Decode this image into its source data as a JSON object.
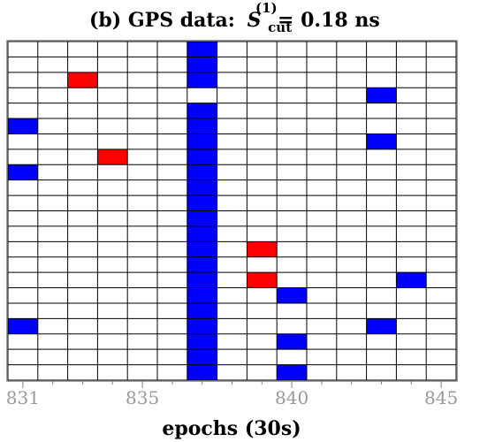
{
  "title": {
    "prefix": "(b) GPS data:",
    "symbol": "S",
    "superscript": "(1)",
    "subscript": "cut",
    "suffix": "= 0.18 ns"
  },
  "chart_data": {
    "type": "heatmap",
    "xlabel": "epochs (30s)",
    "xlim": [
      830.5,
      845.5
    ],
    "x_ticks": [
      831,
      835,
      840,
      845
    ],
    "n_columns": 15,
    "n_rows": 22,
    "colors": {
      "red": "#ff0000",
      "blue": "#0000ff",
      "grid": "#000000",
      "frame": "#808080",
      "empty": "#ffffff"
    },
    "cells": [
      {
        "epoch": 831,
        "row": 6,
        "color": "blue"
      },
      {
        "epoch": 831,
        "row": 9,
        "color": "blue"
      },
      {
        "epoch": 831,
        "row": 19,
        "color": "blue"
      },
      {
        "epoch": 833,
        "row": 3,
        "color": "red"
      },
      {
        "epoch": 834,
        "row": 8,
        "color": "red"
      },
      {
        "epoch": 837,
        "rows_from": 1,
        "rows_to": 3,
        "color": "blue"
      },
      {
        "epoch": 837,
        "rows_from": 5,
        "rows_to": 22,
        "color": "blue"
      },
      {
        "epoch": 839,
        "row": 14,
        "color": "red"
      },
      {
        "epoch": 839,
        "row": 16,
        "color": "red"
      },
      {
        "epoch": 840,
        "row": 17,
        "color": "blue"
      },
      {
        "epoch": 840,
        "row": 20,
        "color": "blue"
      },
      {
        "epoch": 840,
        "row": 22,
        "color": "blue"
      },
      {
        "epoch": 843,
        "row": 4,
        "color": "blue"
      },
      {
        "epoch": 843,
        "row": 7,
        "color": "blue"
      },
      {
        "epoch": 843,
        "row": 19,
        "color": "blue"
      },
      {
        "epoch": 844,
        "row": 16,
        "color": "blue"
      }
    ]
  }
}
